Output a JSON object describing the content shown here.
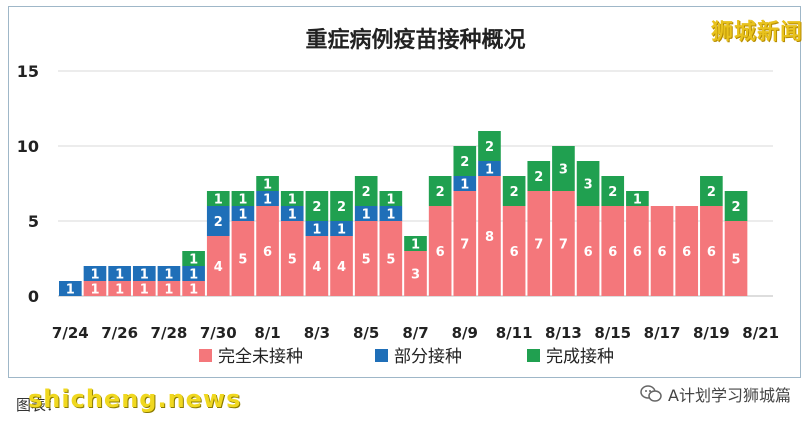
{
  "brand": "狮城新闻",
  "footer": {
    "source": "图表：",
    "site": "shicheng.news",
    "wechat": "A计划学习狮城篇"
  },
  "icons": {
    "wechat": "wechat-icon"
  },
  "colors": {
    "unvaccinated": "#f4777b",
    "partial": "#1f6fb8",
    "full": "#20a050"
  },
  "chart_data": {
    "type": "bar",
    "stacked": true,
    "title": "重症病例疫苗接种概况",
    "ylim": [
      0,
      15
    ],
    "yticks": [
      0,
      5,
      10,
      15
    ],
    "grid": true,
    "legend_position": "bottom",
    "categories": [
      "7/24",
      "7/25",
      "7/26",
      "7/27",
      "7/28",
      "7/29",
      "7/30",
      "7/31",
      "8/1",
      "8/2",
      "8/3",
      "8/4",
      "8/5",
      "8/6",
      "8/7",
      "8/8",
      "8/9",
      "8/10",
      "8/11",
      "8/12",
      "8/13",
      "8/14",
      "8/15",
      "8/16",
      "8/17",
      "8/18",
      "8/19",
      "8/20",
      "8/21"
    ],
    "tick_labels": [
      "7/24",
      "",
      "7/26",
      "",
      "7/28",
      "",
      "7/30",
      "",
      "8/1",
      "",
      "8/3",
      "",
      "8/5",
      "",
      "8/7",
      "",
      "8/9",
      "",
      "8/11",
      "",
      "8/13",
      "",
      "8/15",
      "",
      "8/17",
      "",
      "8/19",
      "",
      "8/21"
    ],
    "series": [
      {
        "name": "完全未接种",
        "color": "#f4777b",
        "values": [
          0,
          1,
          1,
          1,
          1,
          1,
          4,
          5,
          6,
          5,
          4,
          4,
          5,
          5,
          3,
          6,
          7,
          8,
          6,
          7,
          7,
          6,
          6,
          6,
          6,
          6,
          6,
          5,
          0
        ]
      },
      {
        "name": "部分接种",
        "color": "#1f6fb8",
        "values": [
          1,
          1,
          1,
          1,
          1,
          1,
          2,
          1,
          1,
          1,
          1,
          1,
          1,
          1,
          0,
          0,
          1,
          1,
          0,
          0,
          0,
          0,
          0,
          0,
          0,
          0,
          0,
          0,
          0
        ]
      },
      {
        "name": "完成接种",
        "color": "#20a050",
        "values": [
          0,
          0,
          0,
          0,
          0,
          1,
          1,
          1,
          1,
          1,
          2,
          2,
          2,
          1,
          1,
          2,
          2,
          2,
          2,
          2,
          3,
          3,
          2,
          1,
          0,
          0,
          2,
          2,
          0
        ]
      }
    ],
    "data_labels": {
      "完全未接种": [
        "",
        "1",
        "1",
        "1",
        "1",
        "1",
        "4",
        "5",
        "6",
        "5",
        "4",
        "4",
        "5",
        "5",
        "3",
        "6",
        "7",
        "8",
        "6",
        "7",
        "7",
        "6",
        "6",
        "6",
        "6",
        "6",
        "6",
        "5",
        ""
      ],
      "部分接种": [
        "1",
        "1",
        "1",
        "1",
        "1",
        "1",
        "2",
        "1",
        "1",
        "1",
        "1",
        "1",
        "1",
        "1",
        "",
        "",
        "1",
        "1",
        "",
        "",
        "",
        "",
        "",
        "",
        "",
        "",
        "",
        "",
        ""
      ],
      "完成接种": [
        "",
        "",
        "",
        "",
        "",
        "1",
        "1",
        "1",
        "1",
        "1",
        "2",
        "2",
        "2",
        "1",
        "1",
        "2",
        "2",
        "2",
        "2",
        "2",
        "3",
        "3",
        "2",
        "1",
        "",
        "",
        "2",
        "2",
        ""
      ]
    }
  }
}
